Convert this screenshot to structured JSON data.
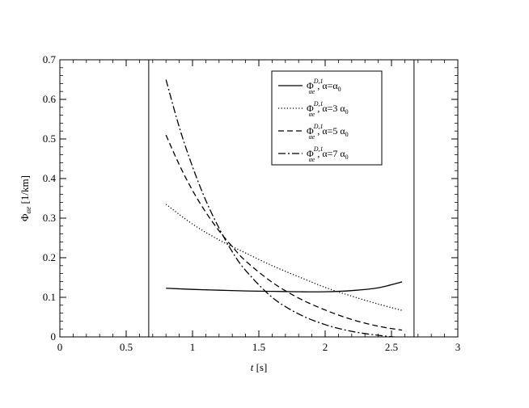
{
  "chart_data": {
    "type": "line",
    "xlim": [
      0,
      3
    ],
    "ylim": [
      0,
      0.7
    ],
    "x_ticks": [
      0,
      0.5,
      1,
      1.5,
      2,
      2.5,
      3
    ],
    "x_tick_labels": [
      "0",
      "0.5",
      "1",
      "1.5",
      "2",
      "2.5",
      "3"
    ],
    "y_ticks": [
      0,
      0.1,
      0.2,
      0.3,
      0.4,
      0.5,
      0.6,
      0.7
    ],
    "y_tick_labels": [
      "0",
      "0.1",
      "0.2",
      "0.3",
      "0.4",
      "0.5",
      "0.6",
      "0.7"
    ],
    "xlabel": {
      "symbol": "t",
      "unit": "[s]"
    },
    "ylabel": {
      "symbol": "Φ",
      "sub": "αe",
      "unit": "[1/km]"
    },
    "vertical_lines": [
      0.67,
      2.67
    ],
    "grid": false,
    "legend_position": "top-right",
    "series": [
      {
        "symbol": "Φ",
        "sup": "D,1",
        "sub": "αe",
        "condition": "α=α",
        "condition_sub": "0",
        "style": "solid",
        "x": [
          0.8,
          1.0,
          1.2,
          1.4,
          1.6,
          1.8,
          2.0,
          2.2,
          2.4,
          2.58
        ],
        "y": [
          0.123,
          0.12,
          0.118,
          0.116,
          0.115,
          0.114,
          0.114,
          0.117,
          0.124,
          0.139
        ]
      },
      {
        "symbol": "Φ",
        "sup": "D,1",
        "sub": "αe",
        "condition": "α=3 α",
        "condition_sub": "0",
        "style": "dotted",
        "x": [
          0.8,
          1.0,
          1.2,
          1.4,
          1.6,
          1.8,
          2.0,
          2.2,
          2.4,
          2.58
        ],
        "y": [
          0.335,
          0.285,
          0.245,
          0.212,
          0.18,
          0.152,
          0.125,
          0.103,
          0.083,
          0.067
        ]
      },
      {
        "symbol": "Φ",
        "sup": "D,1",
        "sub": "αe",
        "condition": "α=5 α",
        "condition_sub": "0",
        "style": "dashed",
        "x": [
          0.8,
          0.9,
          1.0,
          1.1,
          1.2,
          1.3,
          1.4,
          1.6,
          1.8,
          2.0,
          2.2,
          2.4,
          2.58
        ],
        "y": [
          0.51,
          0.435,
          0.37,
          0.315,
          0.268,
          0.228,
          0.192,
          0.138,
          0.098,
          0.068,
          0.044,
          0.027,
          0.017
        ]
      },
      {
        "symbol": "Φ",
        "sup": "D,1",
        "sub": "αe",
        "condition": "α=7 α",
        "condition_sub": "0",
        "style": "dashdot",
        "x": [
          0.8,
          0.9,
          1.0,
          1.1,
          1.2,
          1.3,
          1.4,
          1.6,
          1.8,
          2.0,
          2.2,
          2.4,
          2.58
        ],
        "y": [
          0.65,
          0.53,
          0.43,
          0.345,
          0.275,
          0.215,
          0.168,
          0.1,
          0.058,
          0.031,
          0.014,
          0.004,
          -0.002
        ]
      }
    ]
  }
}
